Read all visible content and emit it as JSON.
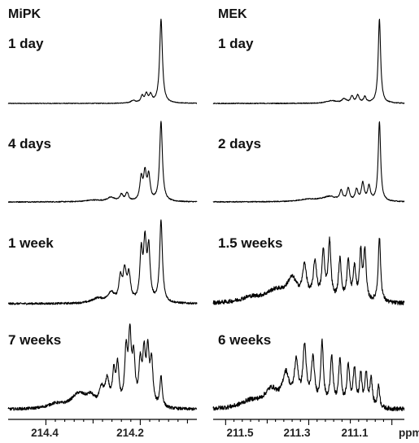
{
  "chart_data": [
    {
      "type": "line",
      "title": "MiPK",
      "xlabel": "",
      "xlim": [
        214.48,
        214.08
      ],
      "x_ticks": [
        214.4,
        214.3,
        214.2,
        214.1
      ],
      "x_tick_labels": [
        "214.4",
        "214.2"
      ],
      "series": [
        {
          "name": "1 day",
          "peaks": [
            {
              "ppm": 214.156,
              "h": 1.0,
              "w": 0.0035
            },
            {
              "ppm": 214.178,
              "h": 0.09,
              "w": 0.0035
            },
            {
              "ppm": 214.187,
              "h": 0.1,
              "w": 0.0035
            },
            {
              "ppm": 214.196,
              "h": 0.08,
              "w": 0.0035
            },
            {
              "ppm": 214.215,
              "h": 0.03,
              "w": 0.006
            }
          ],
          "noise": 0.004
        },
        {
          "name": "4 days",
          "peaks": [
            {
              "ppm": 214.156,
              "h": 1.0,
              "w": 0.0035
            },
            {
              "ppm": 214.182,
              "h": 0.3,
              "w": 0.0035
            },
            {
              "ppm": 214.19,
              "h": 0.33,
              "w": 0.0035
            },
            {
              "ppm": 214.198,
              "h": 0.28,
              "w": 0.0035
            },
            {
              "ppm": 214.228,
              "h": 0.1,
              "w": 0.004
            },
            {
              "ppm": 214.24,
              "h": 0.08,
              "w": 0.004
            },
            {
              "ppm": 214.262,
              "h": 0.05,
              "w": 0.01
            },
            {
              "ppm": 214.3,
              "h": 0.02,
              "w": 0.02
            }
          ],
          "noise": 0.006
        },
        {
          "name": "1 week",
          "peaks": [
            {
              "ppm": 214.156,
              "h": 1.0,
              "w": 0.0035
            },
            {
              "ppm": 214.182,
              "h": 0.62,
              "w": 0.0035
            },
            {
              "ppm": 214.19,
              "h": 0.68,
              "w": 0.0035
            },
            {
              "ppm": 214.198,
              "h": 0.58,
              "w": 0.0035
            },
            {
              "ppm": 214.224,
              "h": 0.32,
              "w": 0.004
            },
            {
              "ppm": 214.233,
              "h": 0.36,
              "w": 0.004
            },
            {
              "ppm": 214.242,
              "h": 0.28,
              "w": 0.004
            },
            {
              "ppm": 214.262,
              "h": 0.12,
              "w": 0.008
            },
            {
              "ppm": 214.29,
              "h": 0.06,
              "w": 0.015
            }
          ],
          "noise": 0.012
        },
        {
          "name": "7 weeks",
          "peaks": [
            {
              "ppm": 214.156,
              "h": 0.42,
              "w": 0.003
            },
            {
              "ppm": 214.176,
              "h": 0.58,
              "w": 0.0035
            },
            {
              "ppm": 214.184,
              "h": 0.7,
              "w": 0.0035
            },
            {
              "ppm": 214.192,
              "h": 0.66,
              "w": 0.0035
            },
            {
              "ppm": 214.2,
              "h": 0.55,
              "w": 0.0035
            },
            {
              "ppm": 214.214,
              "h": 0.62,
              "w": 0.0035
            },
            {
              "ppm": 214.222,
              "h": 0.9,
              "w": 0.0035
            },
            {
              "ppm": 214.23,
              "h": 0.72,
              "w": 0.0035
            },
            {
              "ppm": 214.248,
              "h": 0.52,
              "w": 0.0035
            },
            {
              "ppm": 214.256,
              "h": 0.44,
              "w": 0.0035
            },
            {
              "ppm": 214.27,
              "h": 0.34,
              "w": 0.005
            },
            {
              "ppm": 214.282,
              "h": 0.22,
              "w": 0.006
            },
            {
              "ppm": 214.305,
              "h": 0.12,
              "w": 0.01
            },
            {
              "ppm": 214.33,
              "h": 0.2,
              "w": 0.02
            },
            {
              "ppm": 214.38,
              "h": 0.06,
              "w": 0.02
            }
          ],
          "noise": 0.02
        }
      ]
    },
    {
      "type": "line",
      "title": "MEK",
      "xlabel": "ppm",
      "xlim": [
        211.53,
        211.07
      ],
      "x_ticks": [
        211.5,
        211.4,
        211.3,
        211.2,
        211.1
      ],
      "x_tick_labels": [
        "211.5",
        "211.3",
        "211.1"
      ],
      "series": [
        {
          "name": "1 day",
          "peaks": [
            {
              "ppm": 211.13,
              "h": 1.0,
              "w": 0.0035
            },
            {
              "ppm": 211.165,
              "h": 0.07,
              "w": 0.004
            },
            {
              "ppm": 211.182,
              "h": 0.09,
              "w": 0.004
            },
            {
              "ppm": 211.196,
              "h": 0.08,
              "w": 0.004
            },
            {
              "ppm": 211.215,
              "h": 0.05,
              "w": 0.006
            },
            {
              "ppm": 211.245,
              "h": 0.03,
              "w": 0.015
            }
          ],
          "noise": 0.005
        },
        {
          "name": "2 days",
          "peaks": [
            {
              "ppm": 211.13,
              "h": 1.0,
              "w": 0.0035
            },
            {
              "ppm": 211.155,
              "h": 0.18,
              "w": 0.004
            },
            {
              "ppm": 211.17,
              "h": 0.22,
              "w": 0.004
            },
            {
              "ppm": 211.185,
              "h": 0.14,
              "w": 0.004
            },
            {
              "ppm": 211.205,
              "h": 0.15,
              "w": 0.004
            },
            {
              "ppm": 211.222,
              "h": 0.12,
              "w": 0.004
            },
            {
              "ppm": 211.25,
              "h": 0.06,
              "w": 0.02
            },
            {
              "ppm": 211.3,
              "h": 0.03,
              "w": 0.03
            }
          ],
          "noise": 0.006
        },
        {
          "name": "1.5 weeks",
          "peaks": [
            {
              "ppm": 211.13,
              "h": 0.8,
              "w": 0.0035
            },
            {
              "ppm": 211.165,
              "h": 0.62,
              "w": 0.0035
            },
            {
              "ppm": 211.175,
              "h": 0.58,
              "w": 0.0035
            },
            {
              "ppm": 211.19,
              "h": 0.4,
              "w": 0.004
            },
            {
              "ppm": 211.205,
              "h": 0.48,
              "w": 0.004
            },
            {
              "ppm": 211.225,
              "h": 0.5,
              "w": 0.004
            },
            {
              "ppm": 211.25,
              "h": 0.72,
              "w": 0.004
            },
            {
              "ppm": 211.265,
              "h": 0.58,
              "w": 0.004
            },
            {
              "ppm": 211.285,
              "h": 0.46,
              "w": 0.005
            },
            {
              "ppm": 211.31,
              "h": 0.4,
              "w": 0.006
            },
            {
              "ppm": 211.34,
              "h": 0.26,
              "w": 0.015
            },
            {
              "ppm": 211.38,
              "h": 0.14,
              "w": 0.03
            },
            {
              "ppm": 211.44,
              "h": 0.06,
              "w": 0.03
            }
          ],
          "noise": 0.025
        },
        {
          "name": "6 weeks",
          "peaks": [
            {
              "ppm": 211.132,
              "h": 0.32,
              "w": 0.003
            },
            {
              "ppm": 211.15,
              "h": 0.4,
              "w": 0.0035
            },
            {
              "ppm": 211.162,
              "h": 0.46,
              "w": 0.0035
            },
            {
              "ppm": 211.175,
              "h": 0.44,
              "w": 0.0035
            },
            {
              "ppm": 211.19,
              "h": 0.5,
              "w": 0.004
            },
            {
              "ppm": 211.205,
              "h": 0.55,
              "w": 0.004
            },
            {
              "ppm": 211.225,
              "h": 0.62,
              "w": 0.004
            },
            {
              "ppm": 211.245,
              "h": 0.68,
              "w": 0.004
            },
            {
              "ppm": 211.268,
              "h": 0.85,
              "w": 0.004
            },
            {
              "ppm": 211.29,
              "h": 0.62,
              "w": 0.005
            },
            {
              "ppm": 211.31,
              "h": 0.78,
              "w": 0.005
            },
            {
              "ppm": 211.33,
              "h": 0.56,
              "w": 0.006
            },
            {
              "ppm": 211.355,
              "h": 0.42,
              "w": 0.01
            },
            {
              "ppm": 211.39,
              "h": 0.24,
              "w": 0.02
            },
            {
              "ppm": 211.44,
              "h": 0.1,
              "w": 0.03
            }
          ],
          "noise": 0.03
        }
      ]
    }
  ]
}
